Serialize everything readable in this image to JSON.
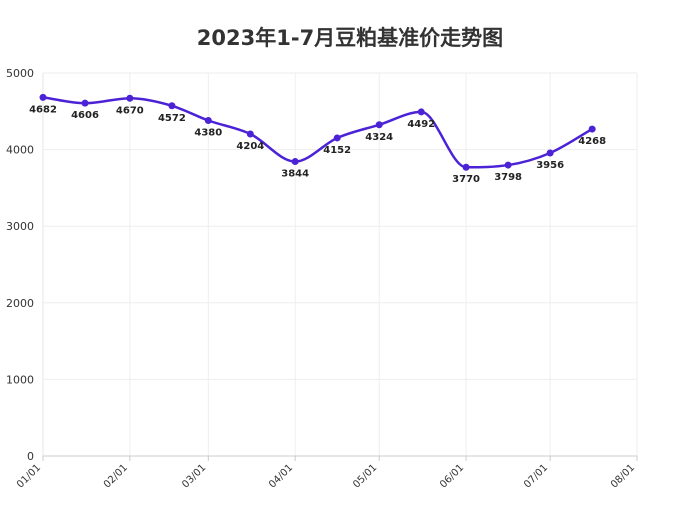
{
  "chart_data": {
    "type": "line",
    "title": "2023年1-7月豆粕基准价走势图",
    "xlabel": "",
    "ylabel": "",
    "ylim": [
      0,
      5000
    ],
    "yticks": [
      0,
      1000,
      2000,
      3000,
      4000,
      5000
    ],
    "xticks": [
      "01/01",
      "02/01",
      "03/01",
      "04/01",
      "05/01",
      "06/01",
      "07/01",
      "08/01"
    ],
    "grid": true,
    "legend": "none",
    "color": "#4b22d6",
    "series": [
      {
        "x": [
          "2023-01-01",
          "2023-01-16",
          "2023-02-01",
          "2023-02-16",
          "2023-03-01",
          "2023-03-16",
          "2023-04-01",
          "2023-04-16",
          "2023-05-01",
          "2023-05-16",
          "2023-06-01",
          "2023-06-16",
          "2023-07-01",
          "2023-07-16"
        ],
        "values": [
          4682,
          4606,
          4670,
          4572,
          4380,
          4204,
          3844,
          4152,
          4324,
          4492,
          3770,
          3798,
          3956,
          4268
        ]
      }
    ]
  }
}
